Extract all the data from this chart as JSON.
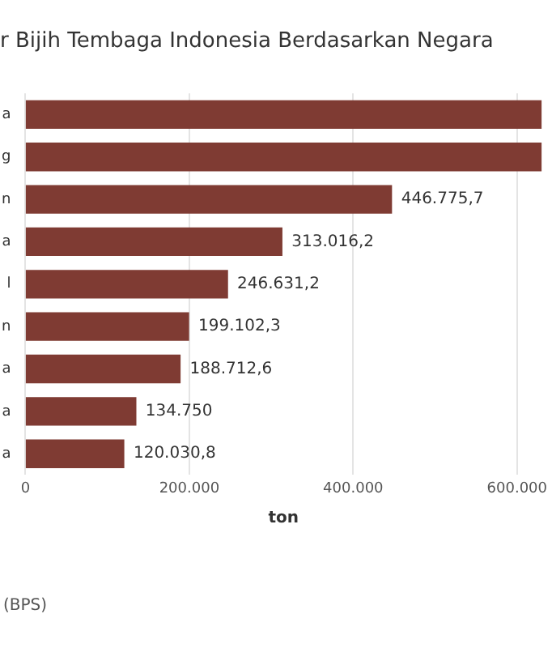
{
  "chart_data": {
    "type": "bar",
    "orientation": "horizontal",
    "title": "r Bijih Tembaga Indonesia Berdasarkan Negara",
    "xlabel": "ton",
    "categories": [
      "a",
      "g",
      "n",
      "a",
      "l",
      "n",
      "a",
      "a",
      "a"
    ],
    "values": [
      630000,
      630000,
      446775.7,
      313016.2,
      246631.2,
      199102.3,
      188712.6,
      134750,
      120030.8
    ],
    "value_labels": [
      null,
      null,
      "446.775,7",
      "313.016,2",
      "246.631,2",
      "199.102,3",
      "188.712,6",
      "134.750",
      "120.030,8"
    ],
    "color": "#7f3b33",
    "xlim": [
      0,
      630000
    ],
    "xticks": [
      {
        "value": 0,
        "label": "0"
      },
      {
        "value": 200000,
        "label": "200.000"
      },
      {
        "value": 400000,
        "label": "400.000"
      },
      {
        "value": 600000,
        "label": "600.000"
      }
    ],
    "grid": "x",
    "legend": false,
    "annotations": [
      "(BPS)"
    ]
  }
}
